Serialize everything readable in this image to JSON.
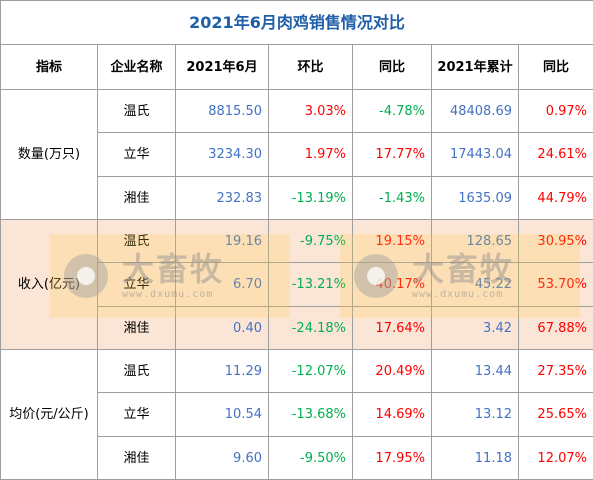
{
  "title": "2021年6月肉鸡销售情况对比",
  "headers": [
    "指标",
    "企业名称",
    "2021年6月",
    "环比",
    "同比",
    "2021年累计",
    "同比"
  ],
  "sections": [
    {
      "metric": "数量(万只)",
      "rows": [
        {
          "company": "温氏",
          "june": "8815.50",
          "mom": "3.03%",
          "yoy": "-4.78%",
          "ytd": "48408.69",
          "ytd_yoy": "0.97%"
        },
        {
          "company": "立华",
          "june": "3234.30",
          "mom": "1.97%",
          "yoy": "17.77%",
          "ytd": "17443.04",
          "ytd_yoy": "24.61%"
        },
        {
          "company": "湘佳",
          "june": "232.83",
          "mom": "-13.19%",
          "yoy": "-1.43%",
          "ytd": "1635.09",
          "ytd_yoy": "44.79%"
        }
      ]
    },
    {
      "metric": "收入(亿元)",
      "rows": [
        {
          "company": "温氏",
          "june": "19.16",
          "mom": "-9.75%",
          "yoy": "19.15%",
          "ytd": "128.65",
          "ytd_yoy": "30.95%"
        },
        {
          "company": "立华",
          "june": "6.70",
          "mom": "-13.21%",
          "yoy": "40.17%",
          "ytd": "45.22",
          "ytd_yoy": "53.70%"
        },
        {
          "company": "湘佳",
          "june": "0.40",
          "mom": "-24.18%",
          "yoy": "17.64%",
          "ytd": "3.42",
          "ytd_yoy": "67.88%"
        }
      ]
    },
    {
      "metric": "均价(元/公斤)",
      "rows": [
        {
          "company": "温氏",
          "june": "11.29",
          "mom": "-12.07%",
          "yoy": "20.49%",
          "ytd": "13.44",
          "ytd_yoy": "27.35%"
        },
        {
          "company": "立华",
          "june": "10.54",
          "mom": "-13.68%",
          "yoy": "14.69%",
          "ytd": "13.12",
          "ytd_yoy": "25.65%"
        },
        {
          "company": "湘佳",
          "june": "9.60",
          "mom": "-9.50%",
          "yoy": "17.95%",
          "ytd": "11.18",
          "ytd_yoy": "12.07%"
        }
      ]
    }
  ],
  "watermark": {
    "brand": "大畜牧",
    "site": "www.dxumu.com"
  },
  "colors": {
    "title": "#1f5fa8",
    "value": "#4472c4",
    "positive": "#ff0000",
    "negative": "#00b050",
    "band": "#fbe5d6"
  }
}
